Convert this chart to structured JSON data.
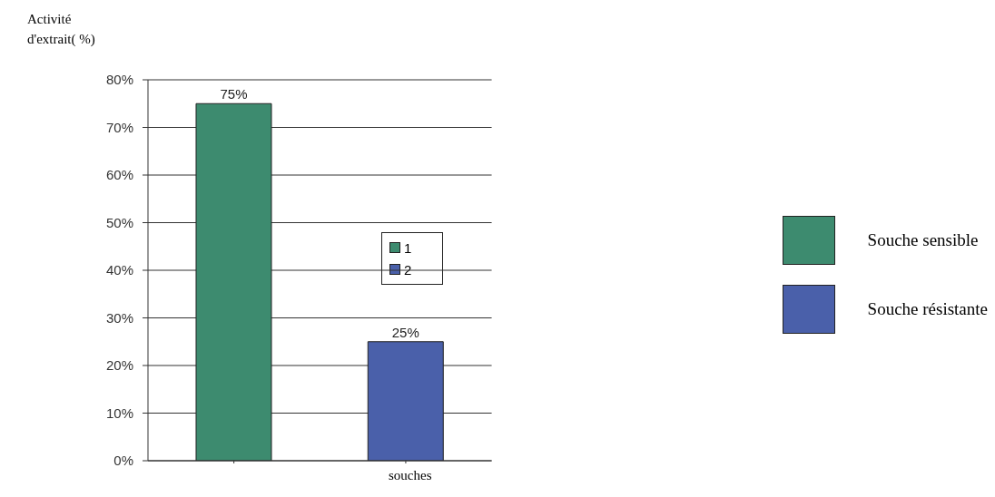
{
  "chart_data": {
    "type": "bar",
    "ylabel": "Activité d'extrait( %)",
    "xlabel": "souches",
    "categories": [
      null,
      null
    ],
    "stacked": true,
    "series": [
      {
        "name": "Souche sensible",
        "color": "#3d8b6f",
        "values": [
          75,
          null
        ],
        "value_labels": [
          "75%",
          null
        ]
      },
      {
        "name": "Souche résistante",
        "color": "#4a60aa",
        "values": [
          null,
          25
        ],
        "value_labels": [
          null,
          "25%"
        ]
      }
    ],
    "ylim": [
      0,
      80
    ],
    "yticks": [
      {
        "value": 0,
        "label": "0%"
      },
      {
        "value": 10,
        "label": "10%"
      },
      {
        "value": 20,
        "label": "20%"
      },
      {
        "value": 30,
        "label": "30%"
      },
      {
        "value": 40,
        "label": "40%"
      },
      {
        "value": 50,
        "label": "50%"
      },
      {
        "value": 60,
        "label": "60%"
      },
      {
        "value": 70,
        "label": "70%"
      },
      {
        "value": 80,
        "label": "80%"
      }
    ],
    "grid": "y",
    "legend": "right",
    "annotations": [
      "1",
      "2"
    ]
  }
}
